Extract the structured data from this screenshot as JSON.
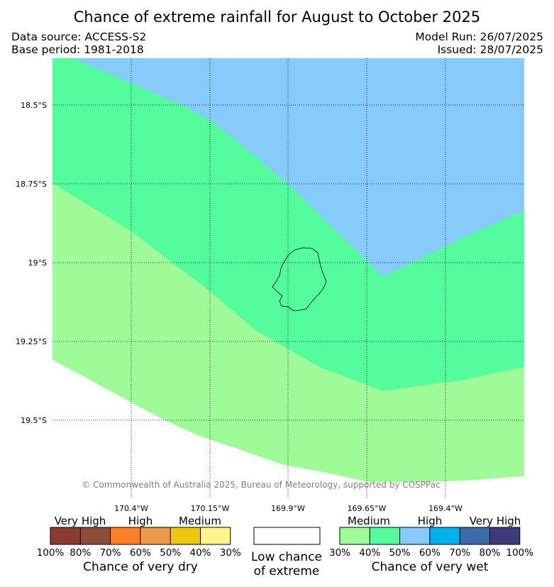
{
  "title": "Chance of extreme rainfall for August to October 2025",
  "data_source": "Data source: ACCESS-S2",
  "base_period": "Base period: 1981-2018",
  "model_run": "Model Run: 26/07/2025",
  "issued": "Issued: 28/07/2025",
  "copyright": "© Commonwealth of Australia 2025, Bureau of Meteorology, supported by COSPPac",
  "lat_labels": [
    "18.5°S",
    "18.75°S",
    "19°S",
    "19.25°S",
    "19.5°S"
  ],
  "lon_labels": [
    "170.4°W",
    "170.15°W",
    "169.9°W",
    "169.65°W",
    "169.4°W"
  ],
  "map_colors": {
    "high_wet": "#87cbfb",
    "medium_wet_40": "#54fc9e",
    "medium_wet_30": "#9ffb97"
  },
  "legend": {
    "dry": {
      "categories": [
        "Very High",
        "High",
        "Medium"
      ],
      "colors": [
        "#8c3a2f",
        "#8c4c3a",
        "#fe7f28",
        "#ee9a4c",
        "#edc810",
        "#fff48b"
      ],
      "ticks": [
        "100%",
        "80%",
        "70%",
        "60%",
        "50%",
        "40%",
        "30%"
      ],
      "caption": "Chance of very dry"
    },
    "low": {
      "color": "#ffffff",
      "caption_line1": "Low chance",
      "caption_line2": "of extreme"
    },
    "wet": {
      "categories": [
        "Medium",
        "High",
        "Very High"
      ],
      "colors": [
        "#9ffb97",
        "#54fc9e",
        "#87cbfb",
        "#00b0ef",
        "#3d6aa9",
        "#3d3c7a"
      ],
      "ticks": [
        "30%",
        "40%",
        "50%",
        "60%",
        "70%",
        "80%",
        "100%"
      ],
      "caption": "Chance of very wet"
    }
  }
}
